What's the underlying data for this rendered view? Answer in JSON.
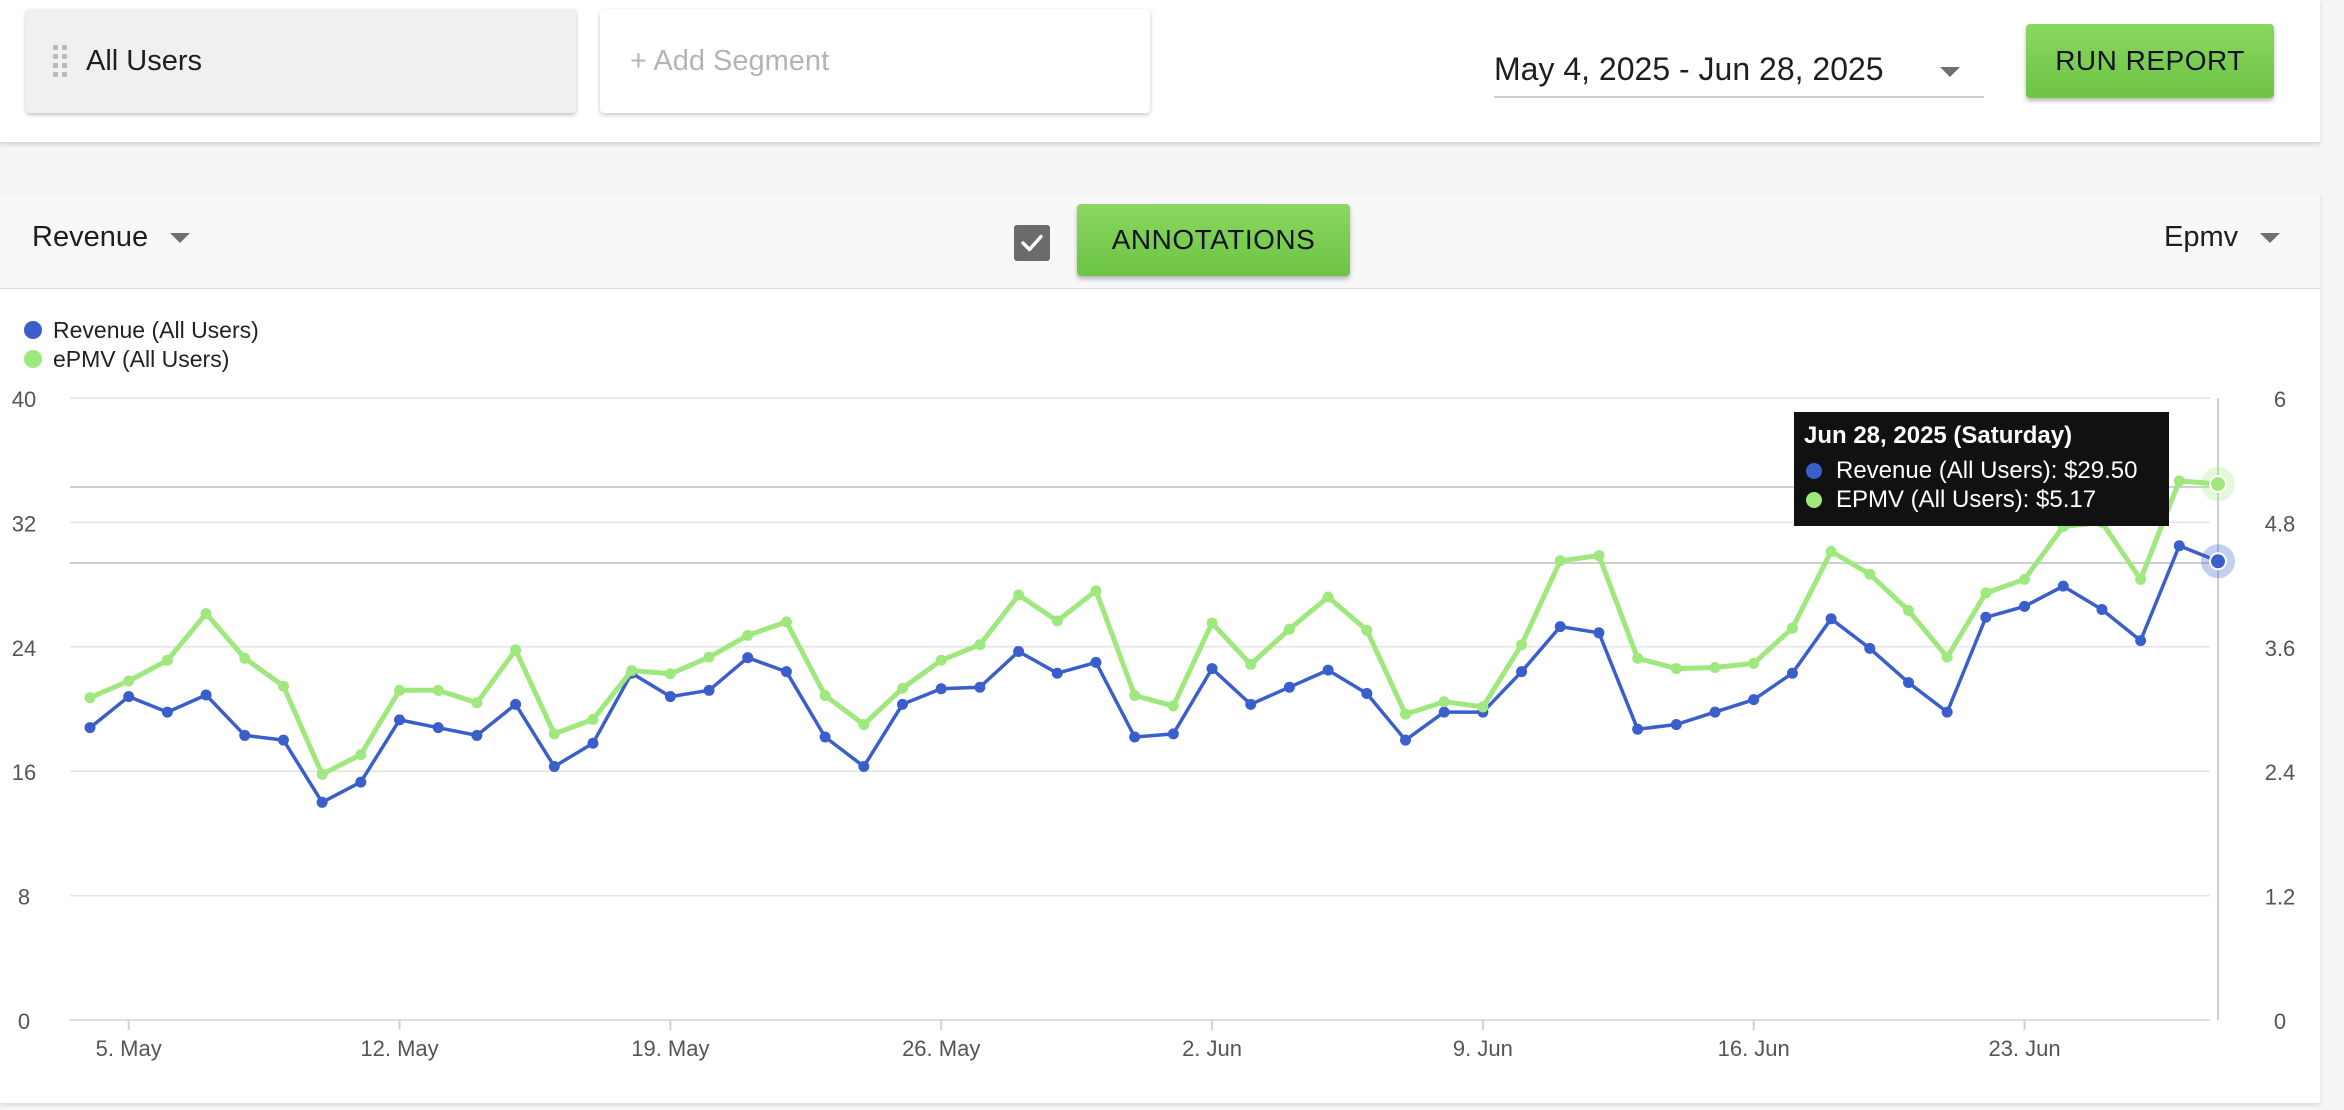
{
  "segments": {
    "selected": "All Users",
    "add_placeholder": "+ Add Segment"
  },
  "date_range": {
    "value": "May 4, 2025 - Jun 28, 2025"
  },
  "run_report_label": "RUN REPORT",
  "panel": {
    "left_metric": "Revenue",
    "right_metric": "Epmv",
    "annotations_label": "ANNOTATIONS",
    "annotations_checked": true
  },
  "colors": {
    "revenue": "#3a5fcd",
    "epmv": "#9fe87e",
    "button_green": "#76c94e"
  },
  "tooltip": {
    "title": "Jun 28, 2025 (Saturday)",
    "revenue_line": "Revenue (All Users): $29.50",
    "epmv_line": "EPMV (All Users): $5.17"
  },
  "chart_data": {
    "type": "line",
    "legend": [
      "Revenue (All Users)",
      "ePMV (All Users)"
    ],
    "legend_position": "top-left",
    "grid": true,
    "x_start": "2025-05-04",
    "x": [
      "2025-05-04",
      "2025-05-05",
      "2025-05-06",
      "2025-05-07",
      "2025-05-08",
      "2025-05-09",
      "2025-05-10",
      "2025-05-11",
      "2025-05-12",
      "2025-05-13",
      "2025-05-14",
      "2025-05-15",
      "2025-05-16",
      "2025-05-17",
      "2025-05-18",
      "2025-05-19",
      "2025-05-20",
      "2025-05-21",
      "2025-05-22",
      "2025-05-23",
      "2025-05-24",
      "2025-05-25",
      "2025-05-26",
      "2025-05-27",
      "2025-05-28",
      "2025-05-29",
      "2025-05-30",
      "2025-05-31",
      "2025-06-01",
      "2025-06-02",
      "2025-06-03",
      "2025-06-04",
      "2025-06-05",
      "2025-06-06",
      "2025-06-07",
      "2025-06-08",
      "2025-06-09",
      "2025-06-10",
      "2025-06-11",
      "2025-06-12",
      "2025-06-13",
      "2025-06-14",
      "2025-06-15",
      "2025-06-16",
      "2025-06-17",
      "2025-06-18",
      "2025-06-19",
      "2025-06-20",
      "2025-06-21",
      "2025-06-22",
      "2025-06-23",
      "2025-06-24",
      "2025-06-25",
      "2025-06-26",
      "2025-06-27",
      "2025-06-28"
    ],
    "x_tick_labels": [
      "5. May",
      "12. May",
      "19. May",
      "26. May",
      "2. Jun",
      "9. Jun",
      "16. Jun",
      "23. Jun"
    ],
    "x_tick_dates": [
      "2025-05-05",
      "2025-05-12",
      "2025-05-19",
      "2025-05-26",
      "2025-06-02",
      "2025-06-09",
      "2025-06-16",
      "2025-06-23"
    ],
    "y_left": {
      "range": [
        0,
        40
      ],
      "ticks": [
        "0",
        "8",
        "16",
        "24",
        "32",
        "40"
      ]
    },
    "y_right": {
      "range": [
        0,
        6
      ],
      "ticks": [
        "0",
        "1.2",
        "2.4",
        "3.6",
        "4.8",
        "6"
      ]
    },
    "series": [
      {
        "name": "Revenue (All Users)",
        "axis": "left",
        "values": [
          18.8,
          20.8,
          19.8,
          20.9,
          18.3,
          18.0,
          14.0,
          15.3,
          19.3,
          18.8,
          18.3,
          20.3,
          16.3,
          17.8,
          22.3,
          20.8,
          21.2,
          23.3,
          22.4,
          18.2,
          16.3,
          20.3,
          21.3,
          21.4,
          23.7,
          22.3,
          23.0,
          18.2,
          18.4,
          22.6,
          20.3,
          21.4,
          22.5,
          21.0,
          18.0,
          19.8,
          19.8,
          22.4,
          25.3,
          24.9,
          18.7,
          19.0,
          19.8,
          20.6,
          22.3,
          25.8,
          23.9,
          21.7,
          19.8,
          25.9,
          26.6,
          27.9,
          26.4,
          24.4,
          30.5,
          29.5
        ]
      },
      {
        "name": "ePMV (All Users)",
        "axis": "right",
        "values": [
          3.11,
          3.27,
          3.47,
          3.92,
          3.49,
          3.22,
          2.37,
          2.56,
          3.18,
          3.18,
          3.06,
          3.57,
          2.76,
          2.9,
          3.37,
          3.34,
          3.5,
          3.71,
          3.84,
          3.13,
          2.85,
          3.2,
          3.47,
          3.62,
          4.1,
          3.85,
          4.14,
          3.13,
          3.03,
          3.83,
          3.43,
          3.77,
          4.08,
          3.76,
          2.95,
          3.07,
          3.02,
          3.62,
          4.43,
          4.48,
          3.49,
          3.39,
          3.4,
          3.44,
          3.78,
          4.52,
          4.3,
          3.95,
          3.5,
          4.12,
          4.25,
          4.76,
          4.8,
          4.25,
          5.2,
          5.17
        ]
      }
    ]
  }
}
